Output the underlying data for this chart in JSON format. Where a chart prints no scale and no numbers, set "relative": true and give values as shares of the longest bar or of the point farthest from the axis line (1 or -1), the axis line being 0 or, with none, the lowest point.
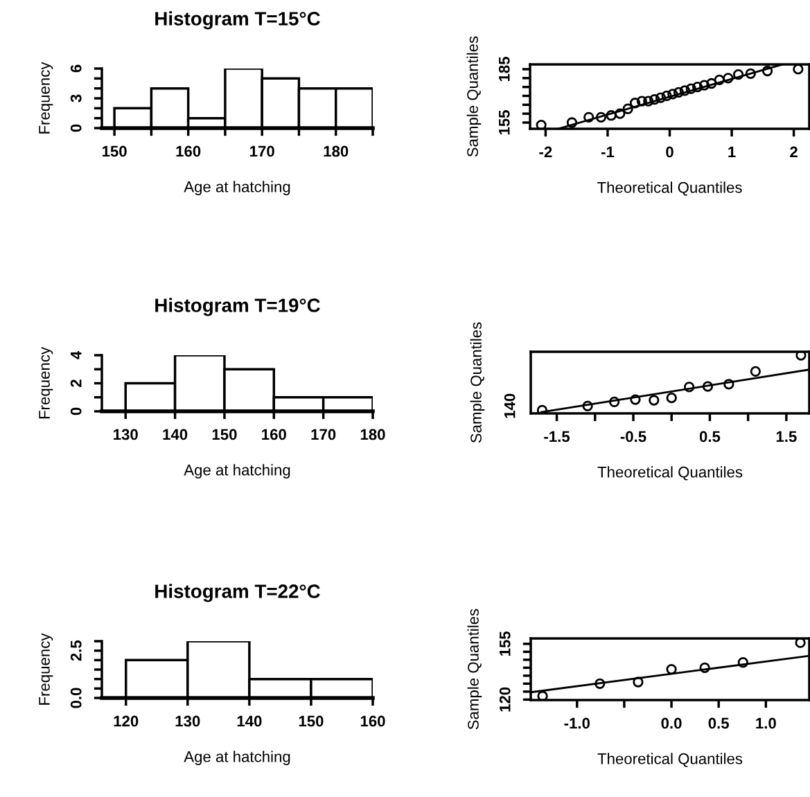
{
  "chart_data": [
    {
      "type": "histogram",
      "title": "Histogram T=15°C",
      "xlabel": "Age at hatching",
      "ylabel": "Frequency",
      "bins": [
        150,
        155,
        160,
        165,
        170,
        175,
        180,
        185
      ],
      "values": [
        2,
        4,
        1,
        6,
        5,
        4,
        4
      ],
      "color": "#ffffff",
      "xlim": [
        148.3,
        185
      ],
      "ylim": [
        0,
        6
      ],
      "xticks": [
        150,
        {
          "value": 155,
          "label": null
        },
        160,
        {
          "value": 165,
          "label": null
        },
        170,
        {
          "value": 175,
          "label": null
        },
        180,
        {
          "value": 185,
          "label": null
        }
      ],
      "yticks": [
        0,
        {
          "value": 1,
          "label": null
        },
        {
          "value": 2,
          "label": null
        },
        3,
        {
          "value": 4,
          "label": null
        },
        {
          "value": 5,
          "label": null
        },
        6
      ],
      "grid": false,
      "legend": false
    },
    {
      "type": "scatter",
      "xlabel": "Theoretical Quantiles",
      "ylabel": "Sample Quantiles",
      "xlim": [
        -2.25,
        2.25
      ],
      "ylim": [
        151.5,
        187.7
      ],
      "xticks": [
        -2,
        -1,
        0,
        1,
        2
      ],
      "yticks": [
        155,
        {
          "value": 160,
          "label": null
        },
        {
          "value": 165,
          "label": null
        },
        {
          "value": 170,
          "label": null
        },
        {
          "value": 175,
          "label": null
        },
        {
          "value": 180,
          "label": null
        },
        185
      ],
      "grid": false,
      "legend": false,
      "series": [
        {
          "type": "scatter",
          "marker": "circle",
          "color": "#000000",
          "x": [
            -2.07,
            -1.575,
            -1.304,
            -1.106,
            -0.942,
            -0.801,
            -0.674,
            -0.558,
            -0.448,
            -0.344,
            -0.244,
            -0.145,
            -0.048,
            0.048,
            0.145,
            0.244,
            0.344,
            0.448,
            0.558,
            0.674,
            0.801,
            0.942,
            1.106,
            1.304,
            1.575,
            2.07
          ],
          "values": [
            153.6,
            155,
            158,
            158,
            159,
            160,
            162.7,
            166,
            167,
            167,
            168,
            169,
            170,
            171,
            172,
            173,
            174,
            175,
            176,
            177,
            179,
            180,
            182,
            182.5,
            184,
            185
          ]
        },
        {
          "type": "line",
          "line_style": "solid",
          "color": "#000000",
          "x": [
            -1.8,
            1.8
          ],
          "values": [
            151.5,
            187.5
          ]
        }
      ]
    },
    {
      "type": "histogram",
      "title": "Histogram T=19°C",
      "xlabel": "Age at hatching",
      "ylabel": "Frequency",
      "bins": [
        130,
        140,
        150,
        160,
        170,
        180
      ],
      "values": [
        2,
        4,
        3,
        1,
        1
      ],
      "color": "#ffffff",
      "xlim": [
        125.2,
        180
      ],
      "ylim": [
        0,
        4
      ],
      "xticks": [
        130,
        140,
        150,
        160,
        170,
        180
      ],
      "yticks": [
        0,
        {
          "value": 1,
          "label": null
        },
        2,
        {
          "value": 3,
          "label": null
        },
        4
      ],
      "grid": false,
      "legend": false
    },
    {
      "type": "scatter",
      "xlabel": "Theoretical Quantiles",
      "ylabel": "Sample Quantiles",
      "xlim": [
        -1.84,
        1.8
      ],
      "relative": true,
      "annotations": [
        "140"
      ],
      "xticks": [
        -1.5,
        {
          "value": -1.0,
          "label": null
        },
        -0.5,
        {
          "value": 0,
          "label": null
        },
        0.5,
        {
          "value": 1.0,
          "label": null
        },
        1.5
      ],
      "grid": false,
      "legend": false,
      "series": [
        {
          "type": "scatter",
          "marker": "circle",
          "color": "#000000",
          "x": [
            -1.691,
            -1.097,
            -0.748,
            -0.473,
            -0.23,
            0,
            0.23,
            0.473,
            0.748,
            1.097,
            1.691
          ],
          "values": [
            0.055,
            0.126,
            0.197,
            0.237,
            0.226,
            0.266,
            0.455,
            0.463,
            0.503,
            0.721,
            1
          ]
        },
        {
          "type": "line",
          "line_style": "solid",
          "color": "#000000",
          "x": [
            -1.7,
            1.8
          ],
          "values": [
            0.021,
            0.753
          ]
        }
      ]
    },
    {
      "type": "histogram",
      "title": "Histogram T=22°C",
      "xlabel": "Age at hatching",
      "ylabel": "Frequency",
      "bins": [
        120,
        130,
        140,
        150,
        160
      ],
      "values": [
        2,
        3,
        1,
        1
      ],
      "color": "#ffffff",
      "xlim": [
        116.1,
        160
      ],
      "ylim": [
        0,
        3
      ],
      "xticks": [
        120,
        130,
        140,
        150,
        160
      ],
      "yticks": [
        {
          "value": 0,
          "label": "0.0"
        },
        {
          "value": 0.5,
          "label": null
        },
        {
          "value": 1,
          "label": null
        },
        {
          "value": 1.5,
          "label": null
        },
        {
          "value": 2,
          "label": null
        },
        2.5,
        {
          "value": 3,
          "label": null
        }
      ],
      "grid": false,
      "legend": false
    },
    {
      "type": "scatter",
      "xlabel": "Theoretical Quantiles",
      "ylabel": "Sample Quantiles",
      "xlim": [
        -1.49,
        1.46
      ],
      "ylim": [
        119.7,
        158.4
      ],
      "xticks": [
        {
          "value": -1.0,
          "label": "-1.0"
        },
        {
          "value": -0.5,
          "label": null
        },
        {
          "value": 0.0,
          "label": "0.0"
        },
        0.5,
        {
          "value": 1.0,
          "label": "1.0"
        }
      ],
      "yticks": [
        120,
        {
          "value": 125,
          "label": null
        },
        {
          "value": 130,
          "label": null
        },
        {
          "value": 135,
          "label": null
        },
        {
          "value": 140,
          "label": null
        },
        {
          "value": 145,
          "label": null
        },
        {
          "value": 150,
          "label": null
        },
        155
      ],
      "grid": false,
      "legend": false,
      "series": [
        {
          "type": "scatter",
          "marker": "circle",
          "color": "#000000",
          "x": [
            -1.365,
            -0.758,
            -0.353,
            0,
            0.353,
            0.758,
            1.365
          ],
          "values": [
            122.2,
            130,
            131,
            139,
            140,
            143.3,
            155.7
          ]
        },
        {
          "type": "line",
          "line_style": "solid",
          "color": "#000000",
          "x": [
            -1.49,
            1.46
          ],
          "values": [
            124.6,
            147.5
          ]
        }
      ]
    }
  ]
}
